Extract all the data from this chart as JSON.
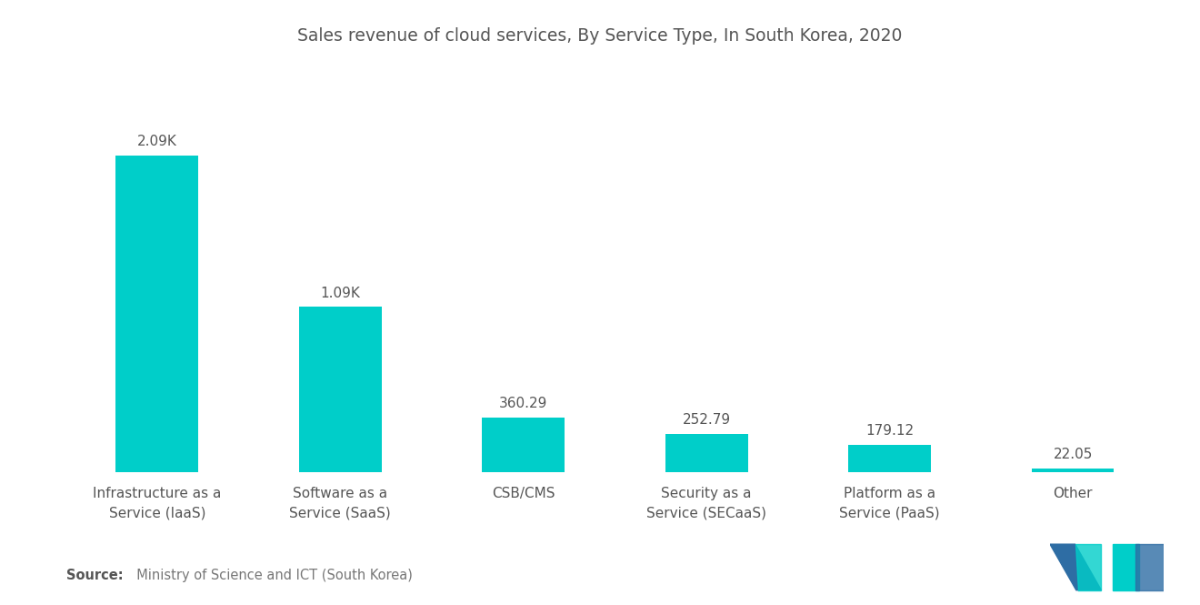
{
  "title": "Sales revenue of cloud services, By Service Type, In South Korea, 2020",
  "categories": [
    "Infrastructure as a\nService (IaaS)",
    "Software as a\nService (SaaS)",
    "CSB/CMS",
    "Security as a\nService (SECaaS)",
    "Platform as a\nService (PaaS)",
    "Other"
  ],
  "values": [
    2090,
    1090,
    360.29,
    252.79,
    179.12,
    22.05
  ],
  "labels": [
    "2.09K",
    "1.09K",
    "360.29",
    "252.79",
    "179.12",
    "22.05"
  ],
  "bar_color": "#00CEC9",
  "background_color": "#ffffff",
  "title_fontsize": 13.5,
  "label_fontsize": 11,
  "tick_fontsize": 11,
  "source_bold": "Source:",
  "source_normal": "  Ministry of Science and ICT (South Korea)",
  "logo_blue": "#2E6DA4",
  "logo_teal": "#00CEC9",
  "ylim_max": 2600,
  "bar_width": 0.45
}
